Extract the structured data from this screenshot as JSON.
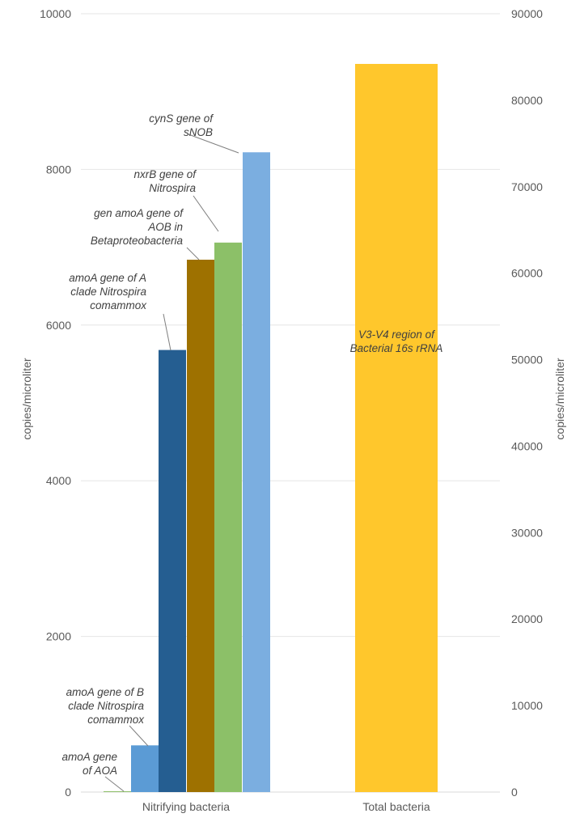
{
  "chart_data": {
    "type": "bar",
    "title": "",
    "categories": [
      "Nitrifying bacteria",
      "Total bacteria"
    ],
    "ylabel": "copies/microliter",
    "y2label": "copies/microliter",
    "ylim": [
      0,
      10000
    ],
    "y2lim": [
      0,
      90000
    ],
    "yticks": [
      "0",
      "2000",
      "4000",
      "6000",
      "8000",
      "10000"
    ],
    "y2ticks": [
      "0",
      "10000",
      "20000",
      "30000",
      "40000",
      "50000",
      "60000",
      "70000",
      "80000",
      "90000"
    ],
    "grid": true,
    "series": [
      {
        "name": "amoA gene of AOA",
        "category": "Nitrifying bacteria",
        "axis": "left",
        "value": 10,
        "color": "#8fbf6a",
        "label_lines": [
          "amoA gene",
          "of AOA"
        ]
      },
      {
        "name": "amoA gene of B clade Nitrospira comammox",
        "category": "Nitrifying bacteria",
        "axis": "left",
        "value": 600,
        "color": "#5b9bd5",
        "label_lines": [
          "amoA gene of B",
          "clade Nitrospira",
          "comammox"
        ]
      },
      {
        "name": "amoA gene of A clade Nitrospira comammox",
        "category": "Nitrifying bacteria",
        "axis": "left",
        "value": 5680,
        "color": "#255e91",
        "label_lines": [
          "amoA gene of A",
          "clade Nitrospira",
          "comammox"
        ]
      },
      {
        "name": "gen amoA gene of AOB in Betaproteobacteria",
        "category": "Nitrifying bacteria",
        "axis": "left",
        "value": 6840,
        "color": "#9e7100",
        "label_lines": [
          "gen amoA gene of",
          "AOB in",
          "Betaproteobacteria"
        ]
      },
      {
        "name": "nxrB gene of Nitrospira",
        "category": "Nitrifying bacteria",
        "axis": "left",
        "value": 7060,
        "color": "#8cc068",
        "label_lines": [
          "nxrB gene of",
          "Nitrospira"
        ]
      },
      {
        "name": "cynS gene of sNOB",
        "category": "Nitrifying bacteria",
        "axis": "left",
        "value": 8220,
        "color": "#7baee0",
        "label_lines": [
          "cynS gene of",
          "sNOB"
        ]
      },
      {
        "name": "V3-V4 region of Bacterial 16s rRNA",
        "category": "Total bacteria",
        "axis": "right",
        "value": 84200,
        "color": "#ffc72c",
        "label_lines": [
          "V3-V4 region of",
          "Bacterial 16s rRNA"
        ]
      }
    ]
  }
}
